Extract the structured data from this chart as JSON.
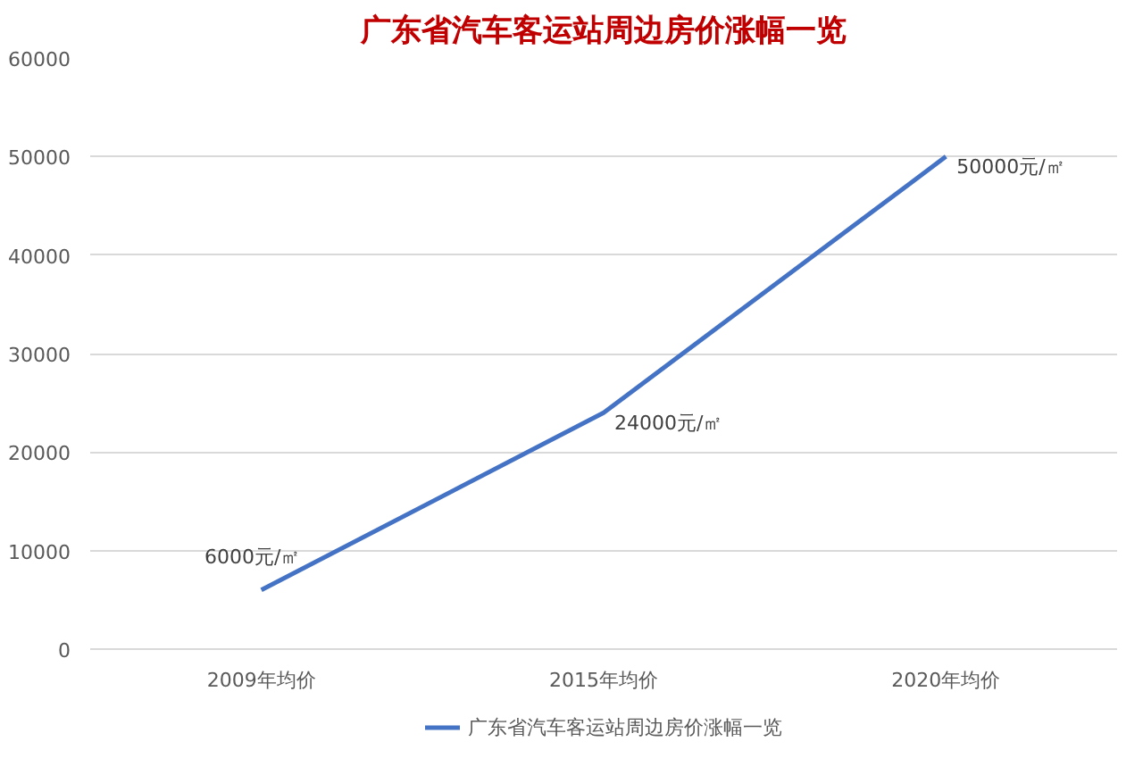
{
  "chart_data": {
    "type": "line",
    "title": "广东省汽车客运站周边房价涨幅一览",
    "categories": [
      "2009年均价",
      "2015年均价",
      "2020年均价"
    ],
    "series": [
      {
        "name": "广东省汽车客运站周边房价涨幅一览",
        "color": "#4472c4",
        "values": [
          6000,
          24000,
          50000
        ],
        "value_labels": [
          "6000元/㎡",
          "24000元/㎡",
          "50000元/㎡"
        ]
      }
    ],
    "ylim": [
      0,
      60000
    ],
    "yticks": [
      0,
      10000,
      20000,
      30000,
      40000,
      50000,
      60000
    ],
    "grid": "y",
    "legend": "bottom",
    "marker": "none",
    "line_style": "solid"
  }
}
